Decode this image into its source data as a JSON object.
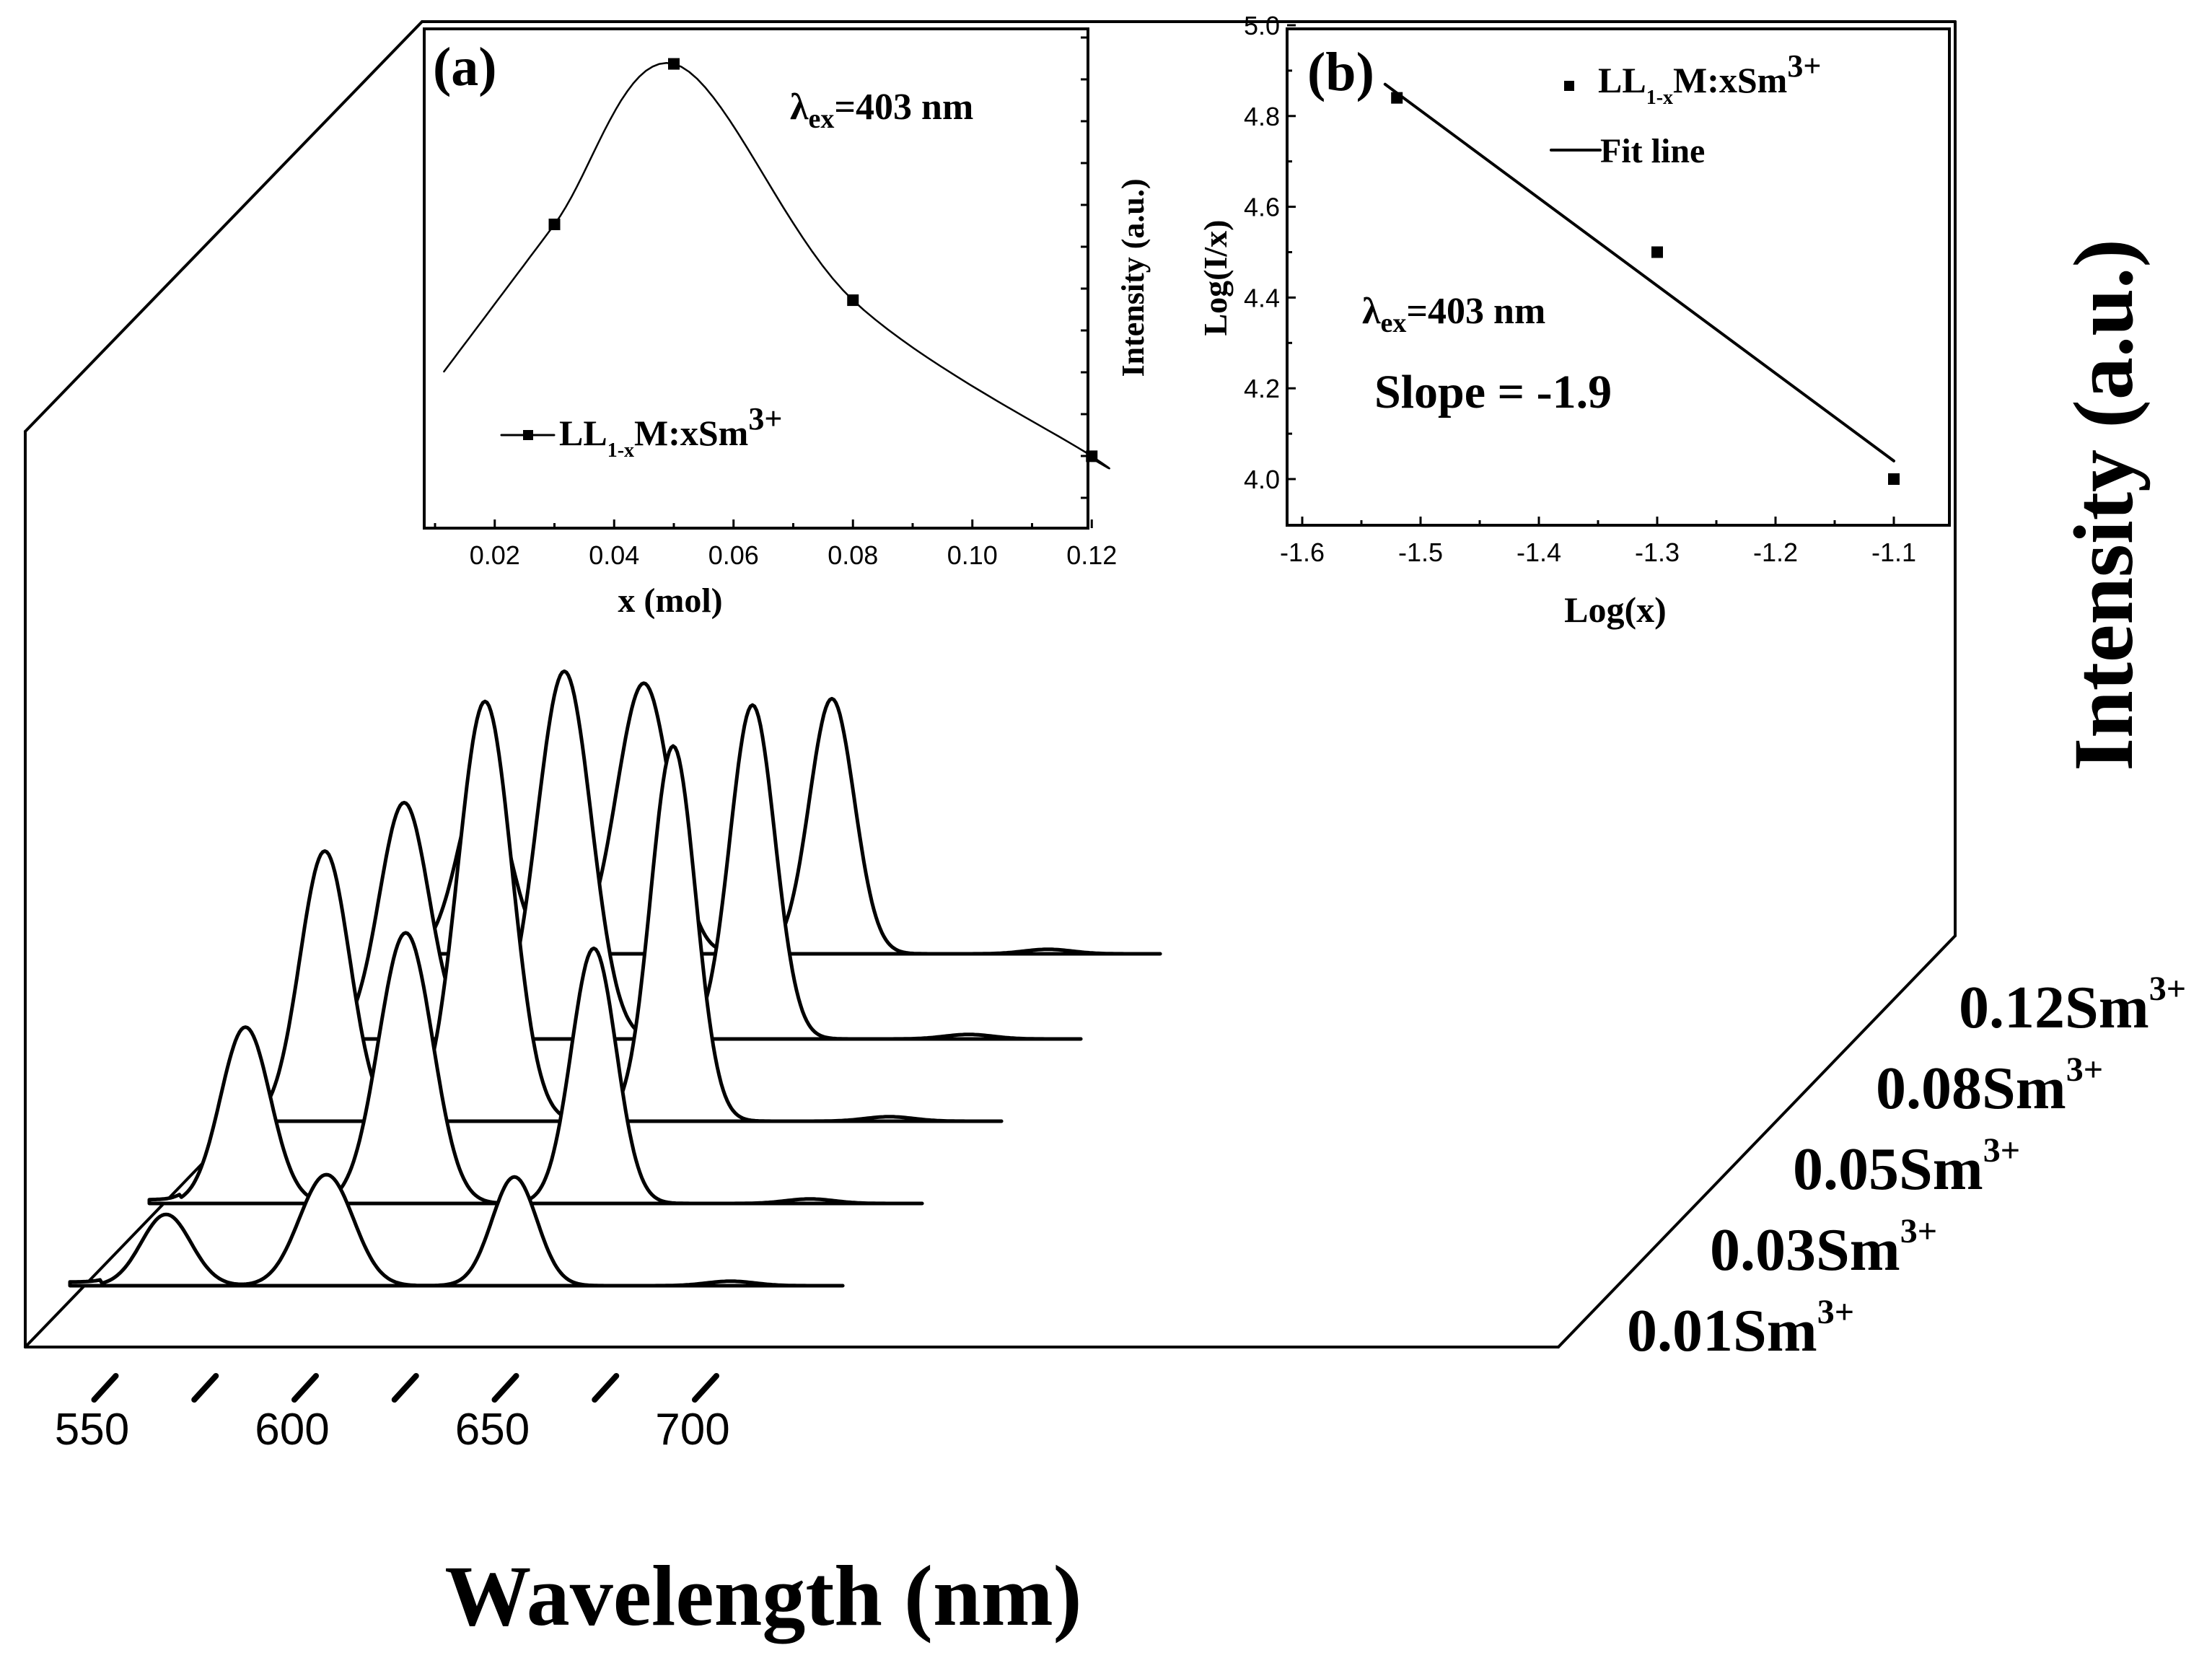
{
  "chart_data": [
    {
      "type": "line",
      "subtype": "waterfall-3d",
      "xlabel": "Wavelength (nm)",
      "ylabel": "Intensity (a.u.)",
      "xlim": [
        540,
        735
      ],
      "x_tick_labels": [
        "550",
        "600",
        "650",
        "700"
      ],
      "series": [
        {
          "name": "0.01Sm",
          "label": "0.01Sm",
          "sup": "3+",
          "peaks": [
            {
              "x": 564,
              "h": 0.19
            },
            {
              "x": 601,
              "h": 0.13
            },
            {
              "x": 606,
              "h": 0.19
            },
            {
              "x": 651,
              "h": 0.29
            }
          ]
        },
        {
          "name": "0.03Sm",
          "label": "0.03Sm",
          "sup": "3+",
          "peaks": [
            {
              "x": 564,
              "h": 0.47
            },
            {
              "x": 601,
              "h": 0.32
            },
            {
              "x": 606,
              "h": 0.46
            },
            {
              "x": 651,
              "h": 0.68
            }
          ]
        },
        {
          "name": "0.05Sm",
          "label": "0.05Sm",
          "sup": "3+",
          "peaks": [
            {
              "x": 564,
              "h": 0.72
            },
            {
              "x": 601,
              "h": 0.5
            },
            {
              "x": 606,
              "h": 0.71
            },
            {
              "x": 651,
              "h": 1.0
            }
          ]
        },
        {
          "name": "0.08Sm",
          "label": "0.08Sm",
          "sup": "3+",
          "peaks": [
            {
              "x": 564,
              "h": 0.63
            },
            {
              "x": 601,
              "h": 0.44
            },
            {
              "x": 606,
              "h": 0.62
            },
            {
              "x": 651,
              "h": 0.89
            }
          ]
        },
        {
          "name": "0.12Sm",
          "label": "0.12Sm",
          "sup": "3+",
          "peaks": [
            {
              "x": 564,
              "h": 0.47
            },
            {
              "x": 601,
              "h": 0.32
            },
            {
              "x": 606,
              "h": 0.46
            },
            {
              "x": 651,
              "h": 0.68
            }
          ]
        }
      ]
    },
    {
      "type": "line",
      "panel": "(a)",
      "xlabel": "x (mol)",
      "ylabel": "Intensity (a.u.)",
      "xlim": [
        0.01,
        0.12
      ],
      "ylim": [
        0,
        1
      ],
      "x_tick_labels": [
        "0.02",
        "0.04",
        "0.06",
        "0.08",
        "0.10",
        "0.12"
      ],
      "x": [
        0.03,
        0.05,
        0.08,
        0.12
      ],
      "y": [
        0.61,
        0.97,
        0.44,
        0.09
      ],
      "annotation": {
        "prefix": "λ",
        "sub": "ex",
        "rest": "=403 nm"
      },
      "legend": {
        "location": "lower-left",
        "pre": "LL",
        "sub": "1-x",
        "mid": "M:xSm",
        "sup": "3+"
      }
    },
    {
      "type": "scatter",
      "panel": "(b)",
      "xlabel": "Log(x)",
      "ylabel": "Log(I/x)",
      "xlim": [
        -1.6,
        -1.05
      ],
      "ylim": [
        3.9,
        5.0
      ],
      "x_tick_labels": [
        "-1.6",
        "-1.5",
        "-1.4",
        "-1.3",
        "-1.2",
        "-1.1"
      ],
      "y_tick_labels": [
        "4.0",
        "4.2",
        "4.4",
        "4.6",
        "4.8",
        "5.0"
      ],
      "x": [
        -1.52,
        -1.3,
        -1.1
      ],
      "y": [
        4.84,
        4.5,
        4.0
      ],
      "fit": {
        "slope": -1.9,
        "x": [
          -1.53,
          -1.1
        ],
        "y": [
          4.87,
          4.04
        ]
      },
      "annotation": {
        "prefix": "λ",
        "sub": "ex",
        "rest": "=403 nm"
      },
      "slope_text": "Slope = -1.9",
      "legend": {
        "location": "top-right",
        "pre": "LL",
        "sub": "1-x",
        "mid": "M:xSm",
        "sup": "3+",
        "fit_label": "Fit line"
      }
    }
  ]
}
